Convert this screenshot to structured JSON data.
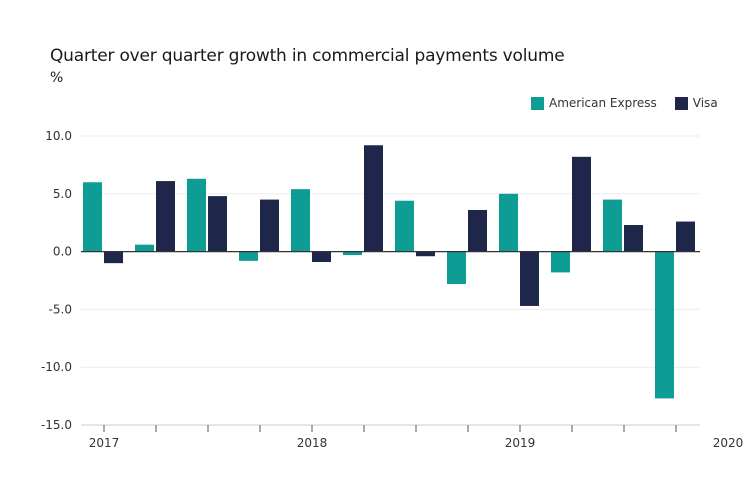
{
  "chart_data": {
    "type": "bar",
    "title": "Quarter over quarter growth in commercial payments volume",
    "unit_label": "%",
    "ylim": [
      -15,
      10
    ],
    "yticks": [
      10,
      5,
      0,
      -5,
      -10,
      -15
    ],
    "ytick_labels": [
      "10.0",
      "5.0",
      "0.0",
      "-5.0",
      "-10.0",
      "-15.0"
    ],
    "grid": true,
    "legend_position": "top-right",
    "x_labels": [
      {
        "label": "2017",
        "index": 0
      },
      {
        "label": "2018",
        "index": 4
      },
      {
        "label": "2019",
        "index": 8
      },
      {
        "label": "2020",
        "index": 12
      }
    ],
    "categories": [
      "Q1 2017",
      "Q2 2017",
      "Q3 2017",
      "Q4 2017",
      "Q1 2018",
      "Q2 2018",
      "Q3 2018",
      "Q4 2018",
      "Q1 2019",
      "Q2 2019",
      "Q3 2019",
      "Q4 2019",
      "Q1 2020"
    ],
    "series": [
      {
        "name": "American Express",
        "color": "#0e9d94",
        "values": [
          6.0,
          0.6,
          6.3,
          -0.8,
          5.4,
          -0.3,
          4.4,
          -2.8,
          5.0,
          -1.8,
          4.5,
          -12.7,
          null
        ]
      },
      {
        "name": "Visa",
        "color": "#1e2749",
        "values": [
          -1.0,
          6.1,
          4.8,
          4.5,
          -0.9,
          9.2,
          -0.4,
          3.6,
          -4.7,
          8.2,
          2.3,
          2.6,
          null
        ]
      }
    ]
  }
}
